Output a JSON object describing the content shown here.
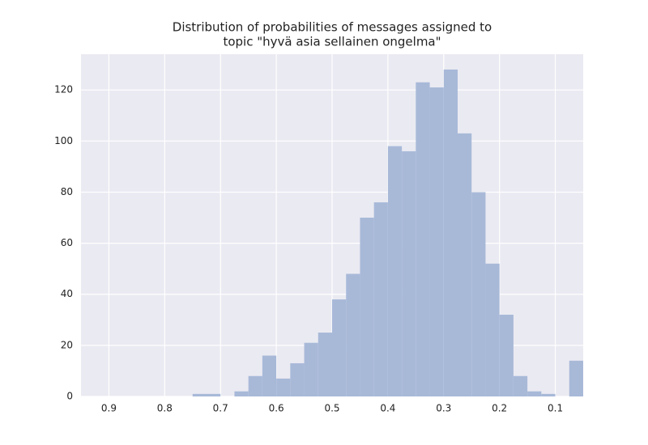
{
  "chart_data": {
    "type": "histogram",
    "title": [
      "Distribution of probabilities of messages assigned to",
      "topic \"hyvä asia sellainen ongelma\""
    ],
    "bins": [
      0.95,
      0.925,
      0.9,
      0.875,
      0.85,
      0.825,
      0.8,
      0.775,
      0.75,
      0.725,
      0.7,
      0.675,
      0.65,
      0.625,
      0.6,
      0.575,
      0.55,
      0.525,
      0.5,
      0.475,
      0.45,
      0.425,
      0.4,
      0.375,
      0.35,
      0.325,
      0.3,
      0.275,
      0.25,
      0.225,
      0.2,
      0.175,
      0.15,
      0.125,
      0.1,
      0.075,
      0.05
    ],
    "values": [
      0,
      0,
      0,
      0,
      0,
      0,
      0,
      0,
      1,
      1,
      0,
      2,
      8,
      16,
      7,
      13,
      21,
      25,
      38,
      48,
      70,
      76,
      98,
      96,
      123,
      121,
      128,
      103,
      80,
      52,
      32,
      8,
      2,
      1,
      0,
      14
    ],
    "color": "#a8b9d8",
    "xlim": [
      0.95,
      0.05
    ],
    "xticks": [
      0.9,
      0.8,
      0.7,
      0.6,
      0.5,
      0.4,
      0.3,
      0.2,
      0.1
    ],
    "ylim": [
      0,
      134
    ],
    "yticks": [
      0,
      20,
      40,
      60,
      80,
      100,
      120
    ],
    "grid": true
  }
}
